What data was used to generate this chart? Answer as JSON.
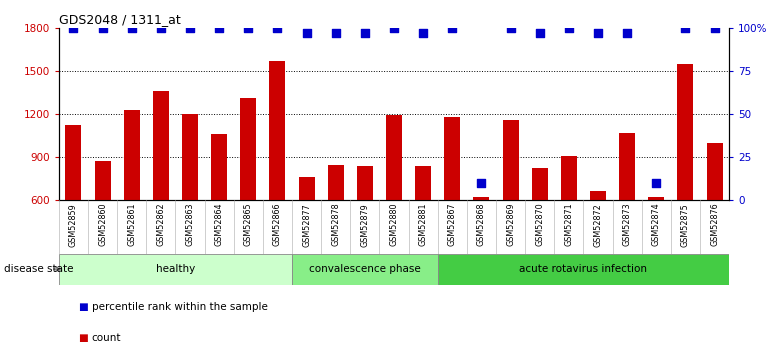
{
  "title": "GDS2048 / 1311_at",
  "samples": [
    "GSM52859",
    "GSM52860",
    "GSM52861",
    "GSM52862",
    "GSM52863",
    "GSM52864",
    "GSM52865",
    "GSM52866",
    "GSM52877",
    "GSM52878",
    "GSM52879",
    "GSM52880",
    "GSM52881",
    "GSM52867",
    "GSM52868",
    "GSM52869",
    "GSM52870",
    "GSM52871",
    "GSM52872",
    "GSM52873",
    "GSM52874",
    "GSM52875",
    "GSM52876"
  ],
  "counts": [
    1120,
    870,
    1230,
    1360,
    1200,
    1060,
    1310,
    1570,
    760,
    845,
    840,
    1195,
    840,
    1175,
    620,
    1160,
    820,
    905,
    660,
    1070,
    625,
    1550,
    1000
  ],
  "percentiles": [
    100,
    100,
    100,
    100,
    100,
    100,
    100,
    100,
    97,
    97,
    97,
    100,
    97,
    100,
    10,
    100,
    97,
    100,
    97,
    97,
    10,
    100,
    100
  ],
  "bar_color": "#cc0000",
  "dot_color": "#0000cc",
  "ylim_left": [
    600,
    1800
  ],
  "ylim_right": [
    0,
    100
  ],
  "yticks_left": [
    600,
    900,
    1200,
    1500,
    1800
  ],
  "yticks_right": [
    0,
    25,
    50,
    75,
    100
  ],
  "dotted_lines": [
    900,
    1200,
    1500
  ],
  "groups": [
    {
      "label": "healthy",
      "start": 0,
      "end": 8,
      "color": "#ccffcc"
    },
    {
      "label": "convalescence phase",
      "start": 8,
      "end": 13,
      "color": "#88ee88"
    },
    {
      "label": "acute rotavirus infection",
      "start": 13,
      "end": 23,
      "color": "#44cc44"
    }
  ],
  "disease_state_label": "disease state",
  "legend_items": [
    {
      "label": "count",
      "color": "#cc0000"
    },
    {
      "label": "percentile rank within the sample",
      "color": "#0000cc"
    }
  ],
  "background_color": "#ffffff",
  "bar_width": 0.55,
  "dot_size": 28,
  "xtick_bg": "#e0e0e0"
}
